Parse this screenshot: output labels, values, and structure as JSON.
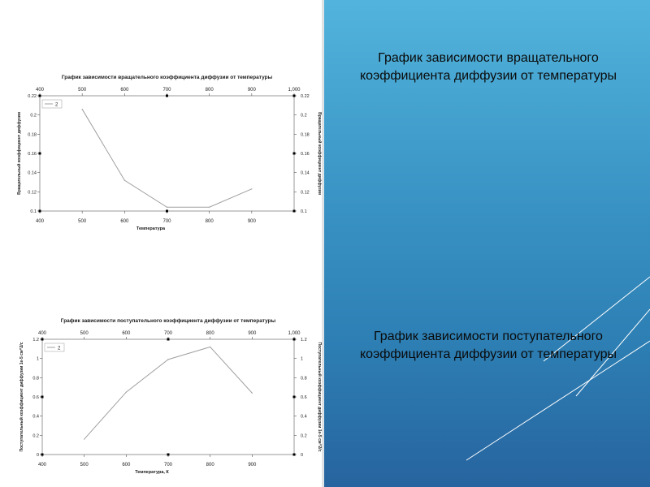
{
  "colors": {
    "panel_top": "#52b4dc",
    "panel_bottom": "#27649f",
    "line": "#a0a0a0",
    "axis": "#555555",
    "text": "#1a1a1a"
  },
  "captions": {
    "top": "График зависимости вращательного коэффициента диффузии от температуры",
    "bottom": "График зависимости поступательного коэффициента диффузии от температуры"
  },
  "chart_data": [
    {
      "type": "line",
      "title": "График зависимости вращательного коэффициента диффузии от температуры",
      "xlabel": "Температура",
      "ylabel": "Вращательный коэффициент диффузии",
      "ylabel_right": "Вращательный коэффициент диффузии",
      "xlim": [
        400,
        1000
      ],
      "ylim": [
        0.1,
        0.22
      ],
      "x_ticks": [
        "400",
        "500",
        "600",
        "700",
        "800",
        "900"
      ],
      "x_ticks_top": [
        "400",
        "500",
        "600",
        "700",
        "800",
        "900",
        "1,000"
      ],
      "y_ticks": [
        "0.1",
        "0.12",
        "0.14",
        "0.16",
        "0.18",
        "0.2",
        "0.22"
      ],
      "series": [
        {
          "name": "2",
          "x": [
            500,
            600,
            700,
            800,
            900
          ],
          "y": [
            0.206,
            0.132,
            0.104,
            0.104,
            0.123
          ]
        }
      ],
      "legend": "top-left",
      "grid": false
    },
    {
      "type": "line",
      "title": "График зависимости поступательного коэффициента диффузии от температуры",
      "xlabel": "Температура, К",
      "ylabel": "Поступательный коэффициент диффузии 1е-5 см^2/с",
      "ylabel_right": "Поступательный коэффициент диффузии 1е-5 см^2/с",
      "xlim": [
        400,
        1000
      ],
      "ylim": [
        0,
        1.2
      ],
      "x_ticks": [
        "400",
        "500",
        "600",
        "700",
        "800",
        "900"
      ],
      "x_ticks_top": [
        "400",
        "500",
        "600",
        "700",
        "800",
        "900",
        "1,000"
      ],
      "y_ticks": [
        "0",
        "0.2",
        "0.4",
        "0.6",
        "0.8",
        "1",
        "1.2"
      ],
      "series": [
        {
          "name": "2",
          "x": [
            500,
            600,
            700,
            800,
            900
          ],
          "y": [
            0.16,
            0.65,
            0.99,
            1.12,
            0.64
          ]
        }
      ],
      "legend": "top-left",
      "grid": false
    }
  ]
}
